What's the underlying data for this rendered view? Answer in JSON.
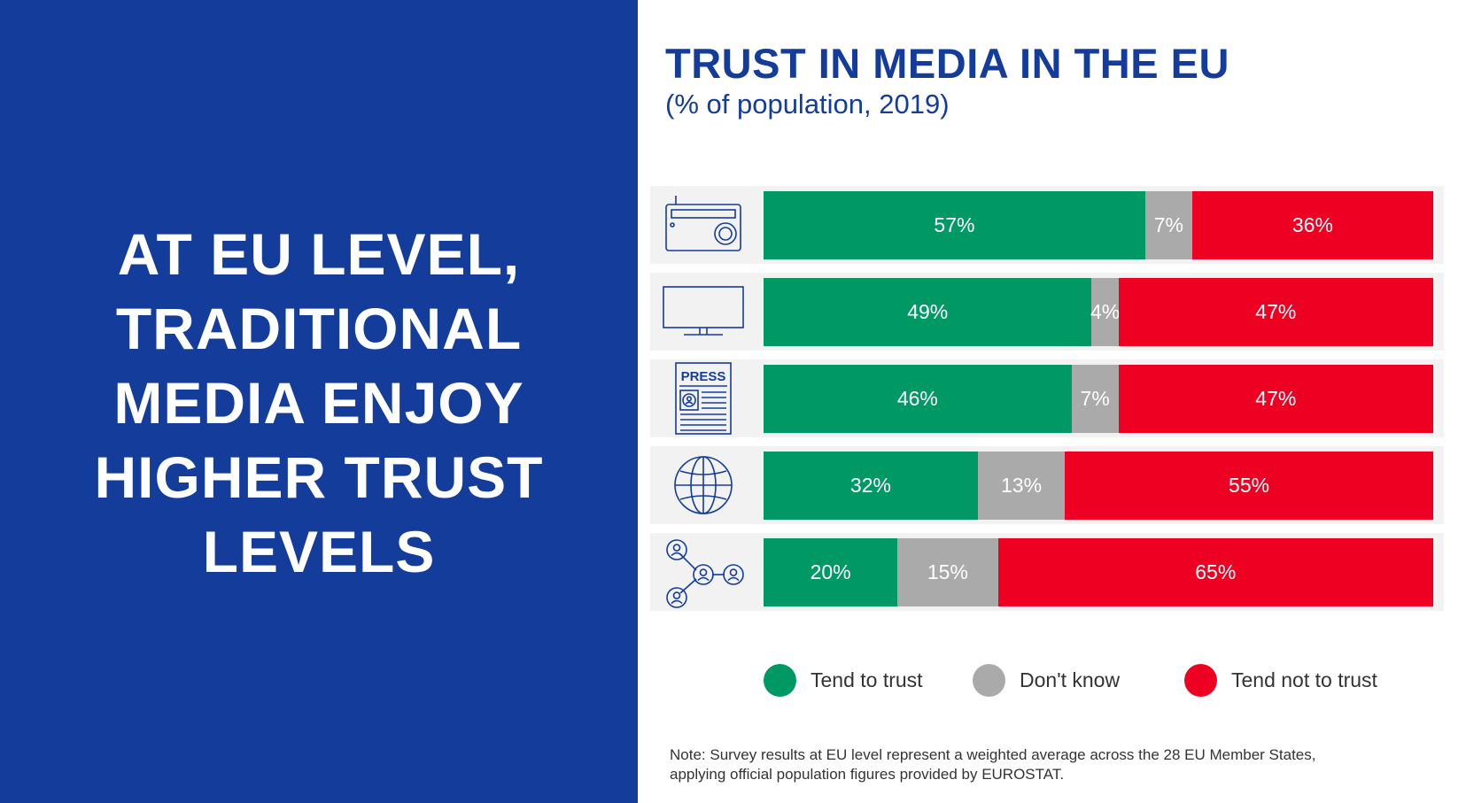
{
  "headline": "AT EU LEVEL,\nTRADITIONAL\nMEDIA ENJOY\nHIGHER TRUST\nLEVELS",
  "chart_data": {
    "type": "bar",
    "orientation": "horizontal",
    "stacked": true,
    "title": "TRUST IN MEDIA IN THE EU",
    "subtitle": "(% of population, 2019)",
    "categories": [
      "radio",
      "television",
      "press",
      "internet",
      "social-networks"
    ],
    "category_icons": [
      "radio-icon",
      "television-icon",
      "press-icon",
      "globe-icon",
      "social-network-icon"
    ],
    "press_icon_text": "PRESS",
    "series": [
      {
        "name": "Tend to trust",
        "color": "#009966",
        "values": [
          57,
          49,
          46,
          32,
          20
        ]
      },
      {
        "name": "Don't know",
        "color": "#aaaaaa",
        "values": [
          7,
          4,
          7,
          13,
          15
        ]
      },
      {
        "name": "Tend not to trust",
        "color": "#ee0022",
        "values": [
          36,
          47,
          47,
          55,
          65
        ]
      }
    ],
    "value_suffix": "%",
    "xlim": [
      0,
      100
    ],
    "grid": false,
    "legend_position": "bottom"
  },
  "note": "Note: Survey results at EU level represent a weighted average across the 28 EU Member States,\napplying official population figures provided by EUROSTAT.",
  "colors": {
    "brand_blue": "#143c9b",
    "row_background": "#f2f2f2"
  }
}
